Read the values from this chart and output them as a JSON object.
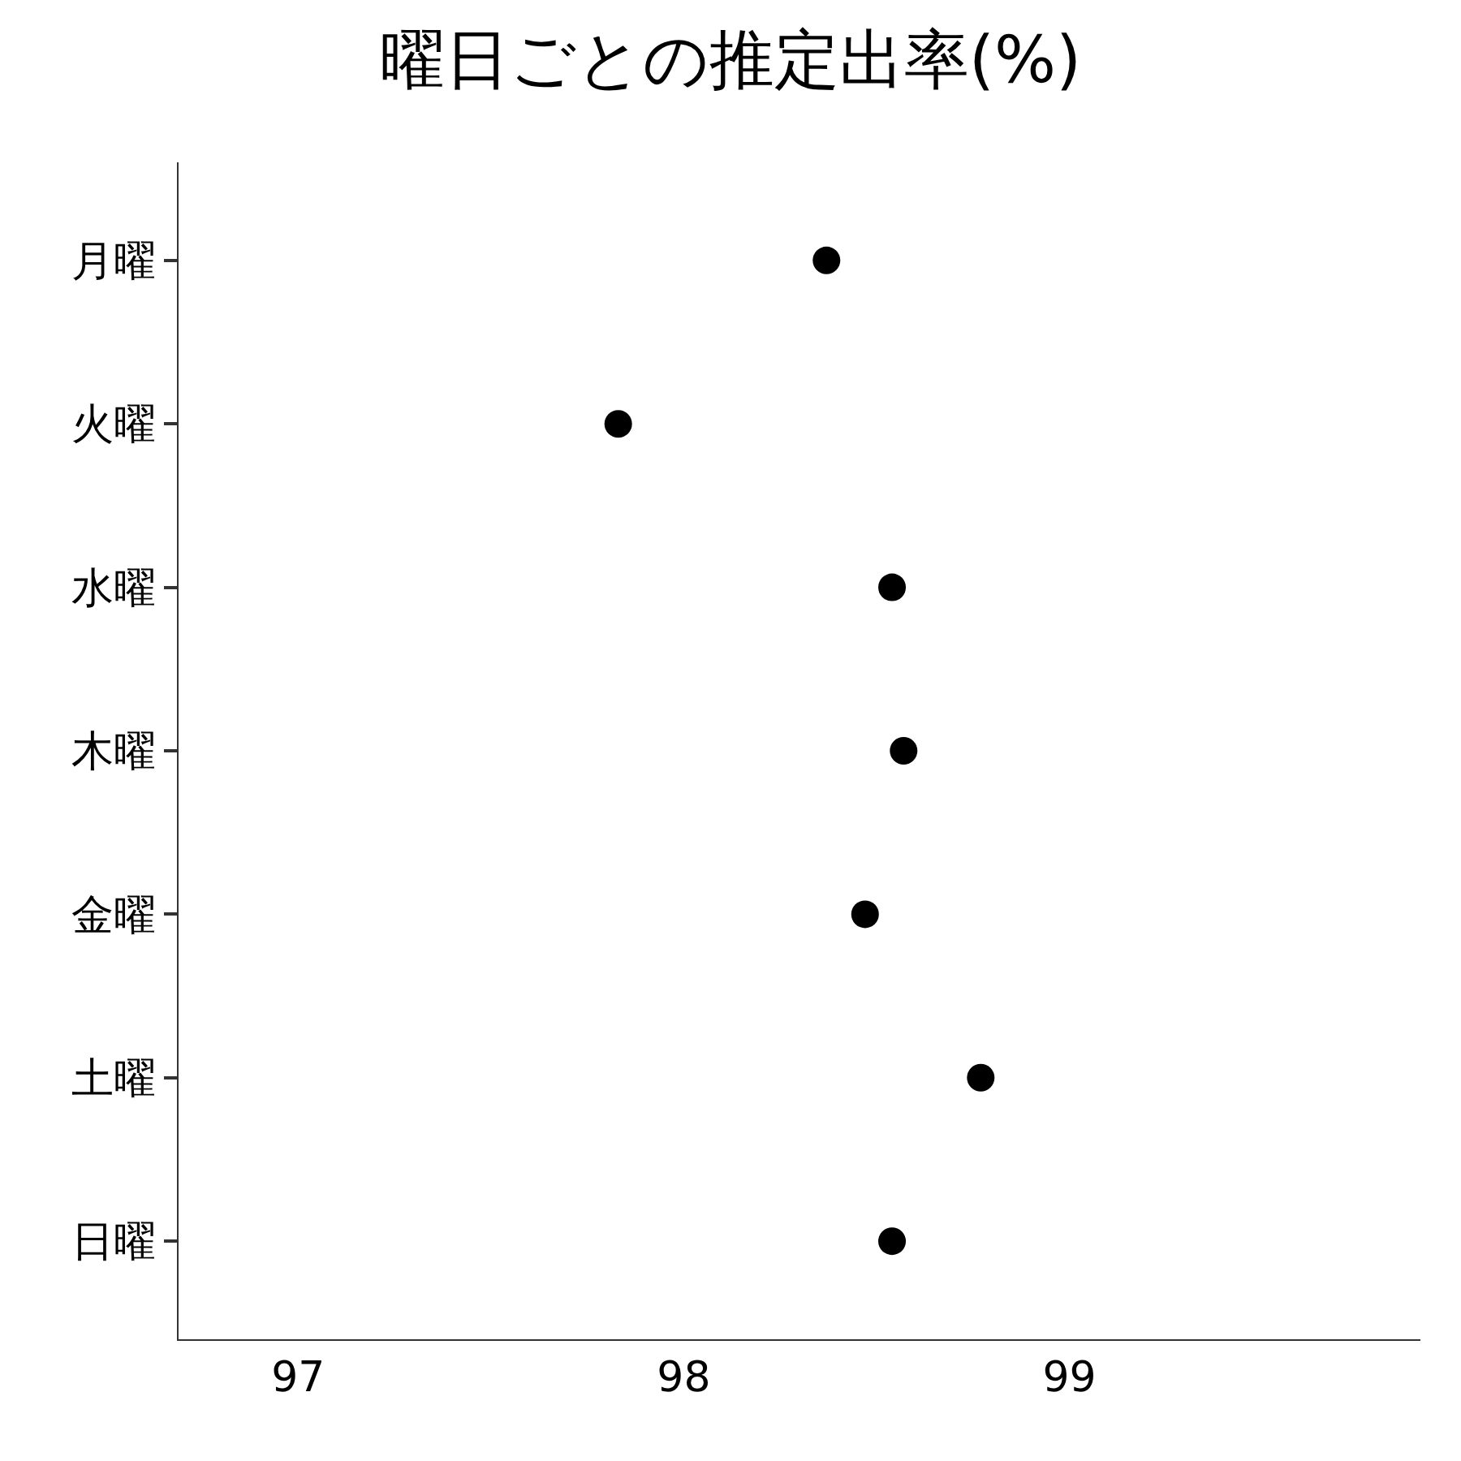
{
  "chart_data": {
    "type": "scatter",
    "title": "曜日ごとの推定出率(%)",
    "orientation": "horizontal",
    "categories": [
      "月曜",
      "火曜",
      "水曜",
      "木曜",
      "金曜",
      "土曜",
      "日曜"
    ],
    "values": [
      98.37,
      97.83,
      98.54,
      98.57,
      98.47,
      98.77,
      98.54
    ],
    "color": "#000000",
    "marker": "circle",
    "xlim": [
      96.69,
      99.91
    ],
    "xticks": [
      97,
      98,
      99
    ]
  }
}
